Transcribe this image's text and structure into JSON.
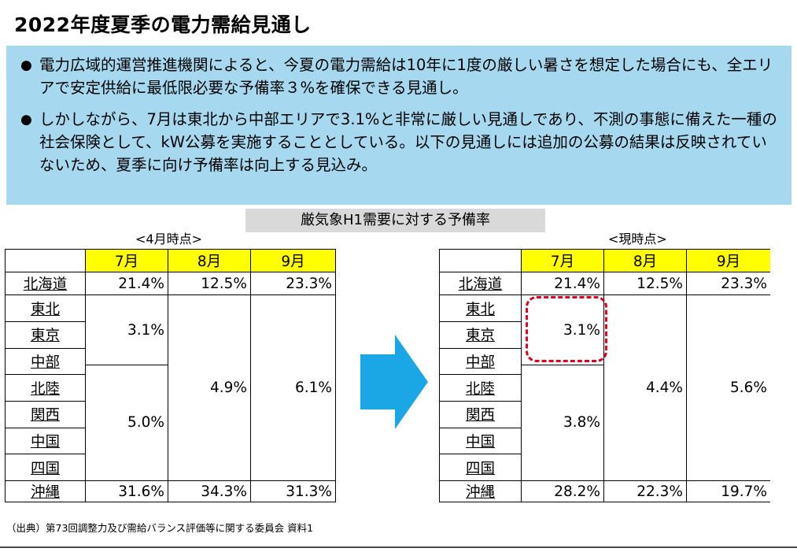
{
  "title": "2022年度夏季の電力需給見通し",
  "bullets": [
    "電力広域的運営推進機関によると、今夏の電力需給は10年に1度の厳しい暑さを想定した場合にも、全エリアで安定供給に最低限必要な予備率３%を確保できる見通し。",
    "しかしながら、7月は東北から中部エリアで3.1%と非常に厳しい見通しであり、不測の事態に備えた一種の社会保険として、kW公募を実施することとしている。以下の見通しには追加の公募の結果は反映されていないため、夏季に向け予備率は向上する見込み。"
  ],
  "bullet_symbol": "●",
  "subtitle": "厳気象H1需要に対する予備率",
  "left_period": "<4月時点>",
  "right_period": "<現時点>",
  "months": [
    "7月",
    "8月",
    "9月"
  ],
  "regions": {
    "hokkaido": "北海道",
    "tohoku": "東北",
    "tokyo": "東京",
    "chubu": "中部",
    "hokuriku": "北陸",
    "kansai": "関西",
    "chugoku": "中国",
    "shikoku": "四国",
    "kyushu": "九州",
    "okinawa": "沖縄"
  },
  "april": {
    "hokkaido": [
      "21.4%",
      "12.5%",
      "23.3%"
    ],
    "jul_east": "3.1%",
    "jul_west": "5.0%",
    "aug_mainland": "4.9%",
    "sep_mainland": "6.1%",
    "okinawa": [
      "31.6%",
      "34.3%",
      "31.3%"
    ]
  },
  "current": {
    "hokkaido": [
      "21.4%",
      "12.5%",
      "23.3%"
    ],
    "jul_east": "3.1%",
    "jul_west": "3.8%",
    "aug_mainland": "4.4%",
    "sep_mainland": "5.6%",
    "okinawa": [
      "28.2%",
      "22.3%",
      "19.7%"
    ]
  },
  "source": "（出典）第73回調整力及び需給バランス評価等に関する委員会 資料1",
  "colors": {
    "summary_bg": "#a6d9f0",
    "header_yellow": "#ffff00",
    "arrow": "#1ba6e6",
    "highlight": "#e0001b"
  }
}
